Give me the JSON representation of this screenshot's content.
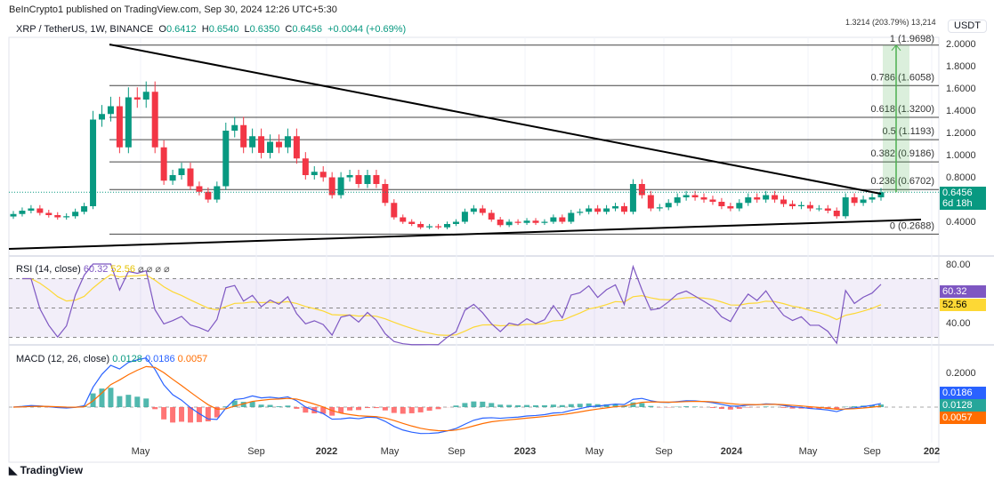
{
  "header": {
    "published": "BeInCrypto1 published on TradingView.com, Sep 30, 2024 12:26 UTC+5:30"
  },
  "legend": {
    "symbol": "XRP / TetherUS, 1W, BINANCE",
    "o_label": "O",
    "o": "0.6412",
    "h_label": "H",
    "h": "0.6540",
    "l_label": "L",
    "l": "0.6350",
    "c_label": "C",
    "c": "0.6456",
    "change": "+0.0044 (+0.69%)"
  },
  "price_axis": {
    "currency": "USDT",
    "ticks": [
      "2.0000",
      "1.8000",
      "1.6000",
      "1.4000",
      "1.2000",
      "1.0000",
      "0.8000",
      "0.4000"
    ],
    "last_price": "0.6456",
    "countdown": "6d 18h"
  },
  "time_axis": {
    "ticks": [
      "May",
      "Sep",
      "2022",
      "May",
      "Sep",
      "2023",
      "May",
      "Sep",
      "2024",
      "May",
      "Sep",
      "202"
    ]
  },
  "measure": {
    "label": "1.3214 (203.79%) 13,214"
  },
  "fib": [
    {
      "label": "1 (1.9698)",
      "price": 1.9698
    },
    {
      "label": "0.786 (1.6058)",
      "price": 1.6058
    },
    {
      "label": "0.618 (1.3200)",
      "price": 1.32
    },
    {
      "label": "0.5 (1.1193)",
      "price": 1.1193
    },
    {
      "label": "0.382 (0.9186)",
      "price": 0.9186
    },
    {
      "label": "0.236 (0.6702)",
      "price": 0.6702
    },
    {
      "label": "0 (0.2688)",
      "price": 0.2688
    }
  ],
  "rsi": {
    "title": "RSI (14, close)",
    "value": "60.32",
    "ma": "52.56",
    "extra": "⌀ ⌀ ⌀ ⌀",
    "ticks": [
      "80.00",
      "40.00"
    ]
  },
  "macd": {
    "title": "MACD (12, 26, close)",
    "hist": "0.0128",
    "macd": "0.0186",
    "signal": "0.0057",
    "ticks": [
      "0.2000"
    ]
  },
  "colors": {
    "up": "#089981",
    "down": "#f23645",
    "rsi": "#7e57c2",
    "rsi_ma": "#fdd835",
    "macd": "#2962ff",
    "signal": "#ff6d00"
  },
  "footer": {
    "brand": "TradingView"
  },
  "closes": [
    0.45,
    0.48,
    0.5,
    0.46,
    0.44,
    0.42,
    0.43,
    0.47,
    0.52,
    1.3,
    1.35,
    1.42,
    1.05,
    1.5,
    1.48,
    1.55,
    1.05,
    0.75,
    0.8,
    0.86,
    0.7,
    0.65,
    0.58,
    0.7,
    1.2,
    1.25,
    1.05,
    1.15,
    1.0,
    1.1,
    1.05,
    1.15,
    0.95,
    0.8,
    0.83,
    0.78,
    0.62,
    0.78,
    0.8,
    0.72,
    0.8,
    0.72,
    0.55,
    0.42,
    0.38,
    0.36,
    0.33,
    0.34,
    0.33,
    0.36,
    0.38,
    0.47,
    0.5,
    0.46,
    0.4,
    0.35,
    0.38,
    0.37,
    0.39,
    0.37,
    0.38,
    0.42,
    0.38,
    0.46,
    0.47,
    0.5,
    0.47,
    0.5,
    0.52,
    0.47,
    0.72,
    0.62,
    0.5,
    0.51,
    0.55,
    0.6,
    0.62,
    0.6,
    0.58,
    0.56,
    0.52,
    0.5,
    0.55,
    0.6,
    0.58,
    0.62,
    0.58,
    0.54,
    0.52,
    0.53,
    0.5,
    0.5,
    0.48,
    0.43,
    0.6,
    0.55,
    0.58,
    0.6,
    0.6456
  ]
}
